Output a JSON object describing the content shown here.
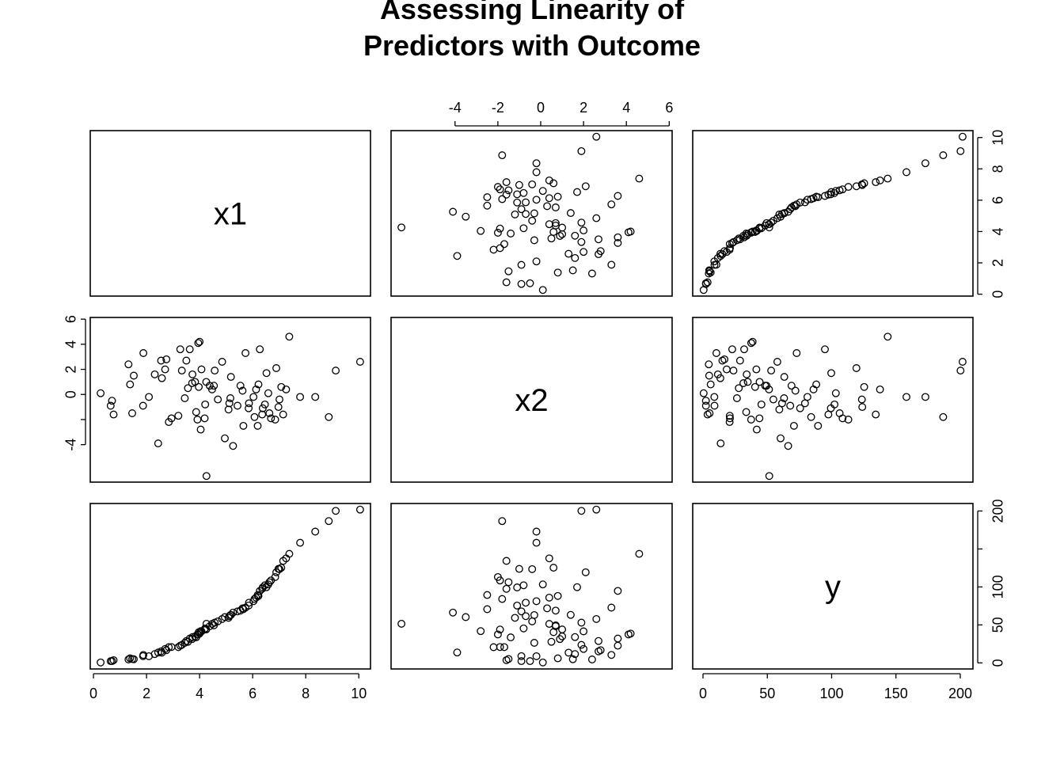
{
  "title": {
    "line1": "Assessing Linearity of",
    "line2": "Predictors with Outcome"
  },
  "chart_data": {
    "type": "scatter",
    "variables": [
      "x1",
      "x2",
      "y"
    ],
    "ranges": {
      "x1": [
        0.27,
        10.05
      ],
      "x2": [
        -6.5,
        5.65
      ],
      "y": [
        0.07,
        201.8
      ]
    },
    "axes": {
      "x1": {
        "ticks": [
          0,
          2,
          4,
          6,
          8,
          10
        ],
        "labels": [
          "0",
          "2",
          "4",
          "6",
          "8",
          "10"
        ]
      },
      "x2": {
        "ticks": [
          -4,
          -2,
          0,
          2,
          4,
          6
        ],
        "labels": [
          "-4",
          "-2",
          "0",
          "2",
          "4",
          "6"
        ]
      },
      "y": {
        "ticks": [
          0,
          50,
          100,
          150,
          200
        ],
        "labels": [
          "0",
          "50",
          "100",
          "150",
          "200"
        ]
      },
      "x2_left": {
        "ticks": [
          -4,
          -2,
          0,
          2,
          4,
          6
        ],
        "labels": [
          "-4",
          "",
          "0",
          "2",
          "4",
          "6"
        ]
      },
      "x1_right": {
        "ticks": [
          0,
          2,
          4,
          6,
          8,
          10
        ],
        "labels": [
          "0",
          "2",
          "4",
          "6",
          "8",
          "10"
        ]
      },
      "y_right": {
        "ticks": [
          0,
          50,
          100,
          150,
          200
        ],
        "labels": [
          "0",
          "50",
          "100",
          "",
          "200"
        ]
      }
    },
    "points": {
      "x1": [
        0.27,
        0.65,
        0.7,
        0.76,
        1.32,
        1.38,
        1.46,
        1.52,
        1.87,
        1.88,
        2.09,
        2.31,
        2.44,
        2.55,
        2.58,
        2.7,
        2.75,
        2.84,
        2.94,
        3.2,
        3.27,
        3.33,
        3.44,
        3.5,
        3.56,
        3.63,
        3.72,
        3.73,
        3.83,
        3.87,
        3.92,
        3.95,
        3.97,
        4.0,
        4.04,
        4.07,
        4.19,
        4.21,
        4.25,
        4.26,
        4.38,
        4.47,
        4.54,
        4.57,
        4.69,
        4.85,
        4.95,
        5.09,
        5.12,
        5.16,
        5.18,
        5.26,
        5.43,
        5.54,
        5.62,
        5.65,
        5.73,
        5.85,
        5.86,
        6.03,
        6.07,
        6.13,
        6.19,
        6.22,
        6.27,
        6.36,
        6.38,
        6.46,
        6.52,
        6.59,
        6.63,
        6.69,
        6.85,
        6.89,
        6.97,
        7.01,
        7.08,
        7.15,
        7.26,
        7.38,
        7.79,
        8.36,
        8.87,
        9.13,
        10.05
      ],
      "x2": [
        0.1,
        -0.9,
        -0.5,
        -1.6,
        2.4,
        0.8,
        -1.5,
        1.5,
        -0.9,
        3.3,
        -0.2,
        1.6,
        -3.9,
        2.7,
        1.3,
        2.0,
        2.8,
        -2.2,
        -1.9,
        -1.7,
        3.6,
        1.9,
        -0.3,
        2.7,
        0.5,
        3.6,
        0.9,
        1.6,
        1.0,
        -1.4,
        -2.0,
        4.1,
        0.6,
        4.2,
        -2.8,
        2.0,
        -1.9,
        -0.8,
        1.0,
        -6.5,
        0.7,
        0.4,
        0.7,
        1.9,
        -0.4,
        2.6,
        -3.5,
        -1.2,
        -0.7,
        -0.3,
        1.4,
        -4.1,
        -0.9,
        0.7,
        0.3,
        -2.5,
        3.3,
        -1.1,
        -0.7,
        -0.2,
        -1.8,
        0.4,
        -2.5,
        0.8,
        3.6,
        -1.6,
        -1.1,
        -0.8,
        1.7,
        0.1,
        -1.5,
        -1.9,
        -2.0,
        2.1,
        -1.0,
        -0.4,
        0.6,
        -1.6,
        0.4,
        4.6,
        -0.2,
        -0.2,
        -1.8,
        1.9,
        2.6
      ],
      "y": [
        0.5,
        2.3,
        2.3,
        3.6,
        4.5,
        6.0,
        5.1,
        4.8,
        8.9,
        10.4,
        8.8,
        11.6,
        13.7,
        15.1,
        13.5,
        18.4,
        16.7,
        20.7,
        20.9,
        20.8,
        22.7,
        23.7,
        26.4,
        28.8,
        27.8,
        32.0,
        31.4,
        34.0,
        34.8,
        33.6,
        37.4,
        37.5,
        40.5,
        38.6,
        41.8,
        41.5,
        43.9,
        45.4,
        44.0,
        51.5,
        48.3,
        51.3,
        49.4,
        53.0,
        54.7,
        57.8,
        60.3,
        59.3,
        61.5,
        63.0,
        63.2,
        66.2,
        67.8,
        68.8,
        71.8,
        70.7,
        72.8,
        75.5,
        79.3,
        81.2,
        84.1,
        85.9,
        89.4,
        88.1,
        94.8,
        97.5,
        99.4,
        102.2,
        99.7,
        103.3,
        106.2,
        108.5,
        113.0,
        119.3,
        123.8,
        123.5,
        125.3,
        134.3,
        137.6,
        143.6,
        158.2,
        172.9,
        186.7,
        200.2,
        201.8
      ]
    }
  }
}
